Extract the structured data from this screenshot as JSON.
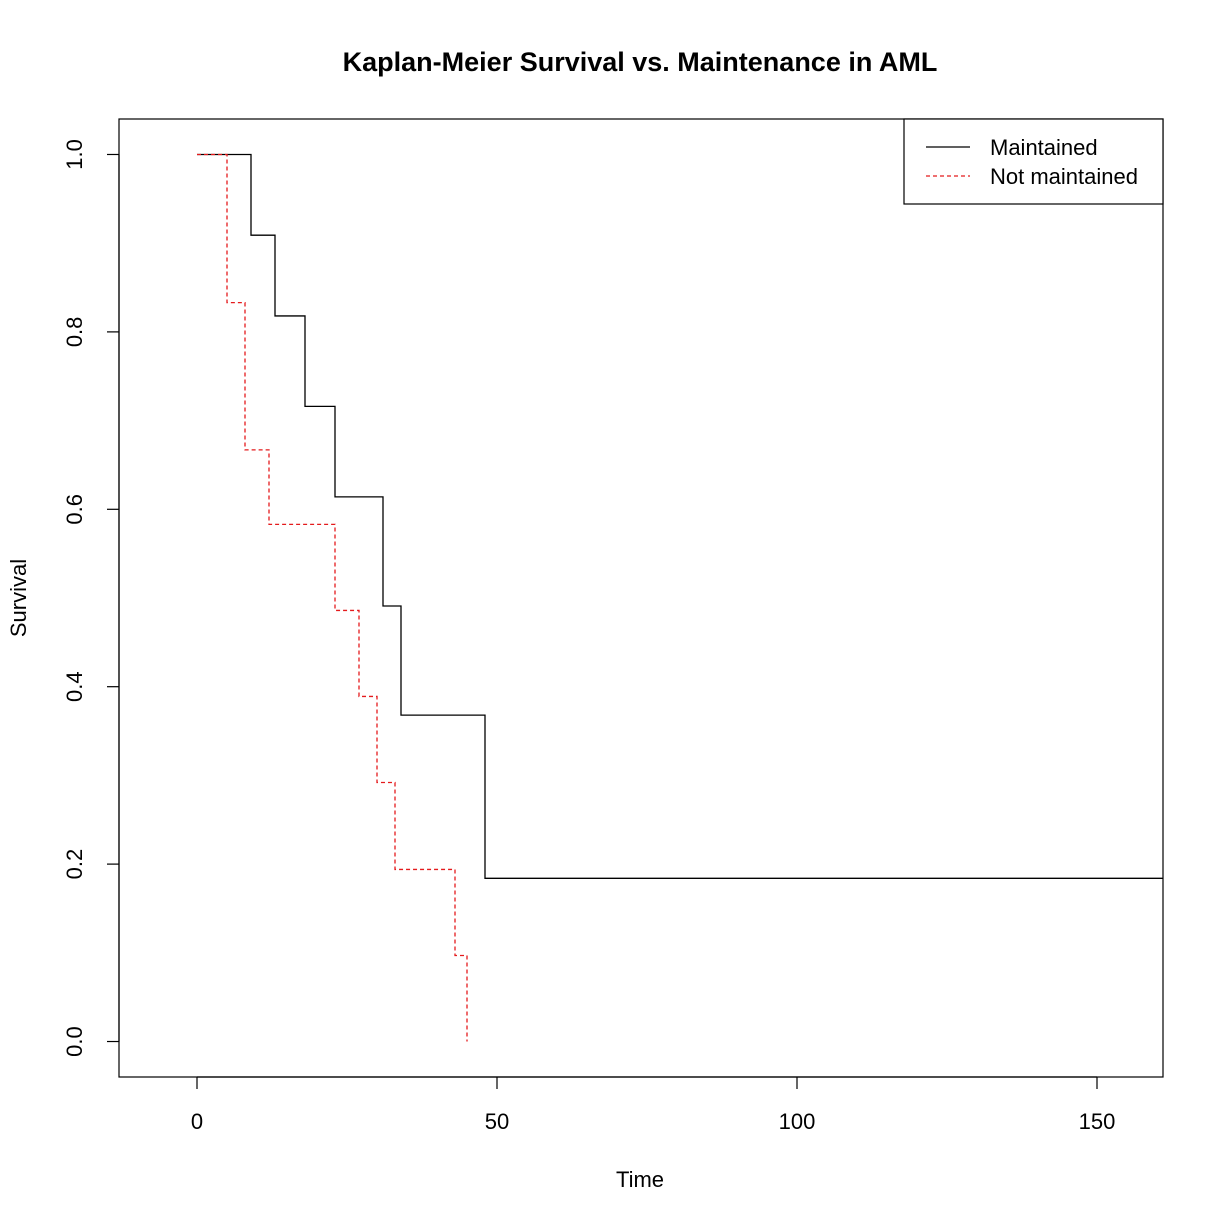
{
  "chart_data": {
    "type": "line",
    "title": "Kaplan-Meier Survival vs. Maintenance in AML",
    "xlabel": "Time",
    "ylabel": "Survival",
    "xlim": [
      -13,
      161
    ],
    "ylim": [
      -0.04,
      1.04
    ],
    "x_ticks": [
      0,
      50,
      100,
      150
    ],
    "x_tick_labels": [
      "0",
      "50",
      "100",
      "150"
    ],
    "y_ticks": [
      0.0,
      0.2,
      0.4,
      0.6,
      0.8,
      1.0
    ],
    "y_tick_labels": [
      "0.0",
      "0.2",
      "0.4",
      "0.6",
      "0.8",
      "1.0"
    ],
    "grid": false,
    "legend_position": "top-right",
    "series": [
      {
        "name": "Maintained",
        "color": "#000000",
        "line_style": "solid",
        "step": true,
        "x": [
          0,
          9,
          13,
          18,
          23,
          31,
          34,
          48,
          161
        ],
        "y": [
          1.0,
          0.909,
          0.818,
          0.716,
          0.614,
          0.491,
          0.368,
          0.184,
          0.184
        ]
      },
      {
        "name": "Not maintained",
        "color": "#e41a1c",
        "line_style": "dashed",
        "step": true,
        "x": [
          0,
          5,
          8,
          12,
          23,
          27,
          30,
          33,
          43,
          45
        ],
        "y": [
          1.0,
          0.833,
          0.667,
          0.583,
          0.486,
          0.389,
          0.292,
          0.194,
          0.097,
          0.0
        ]
      }
    ]
  }
}
